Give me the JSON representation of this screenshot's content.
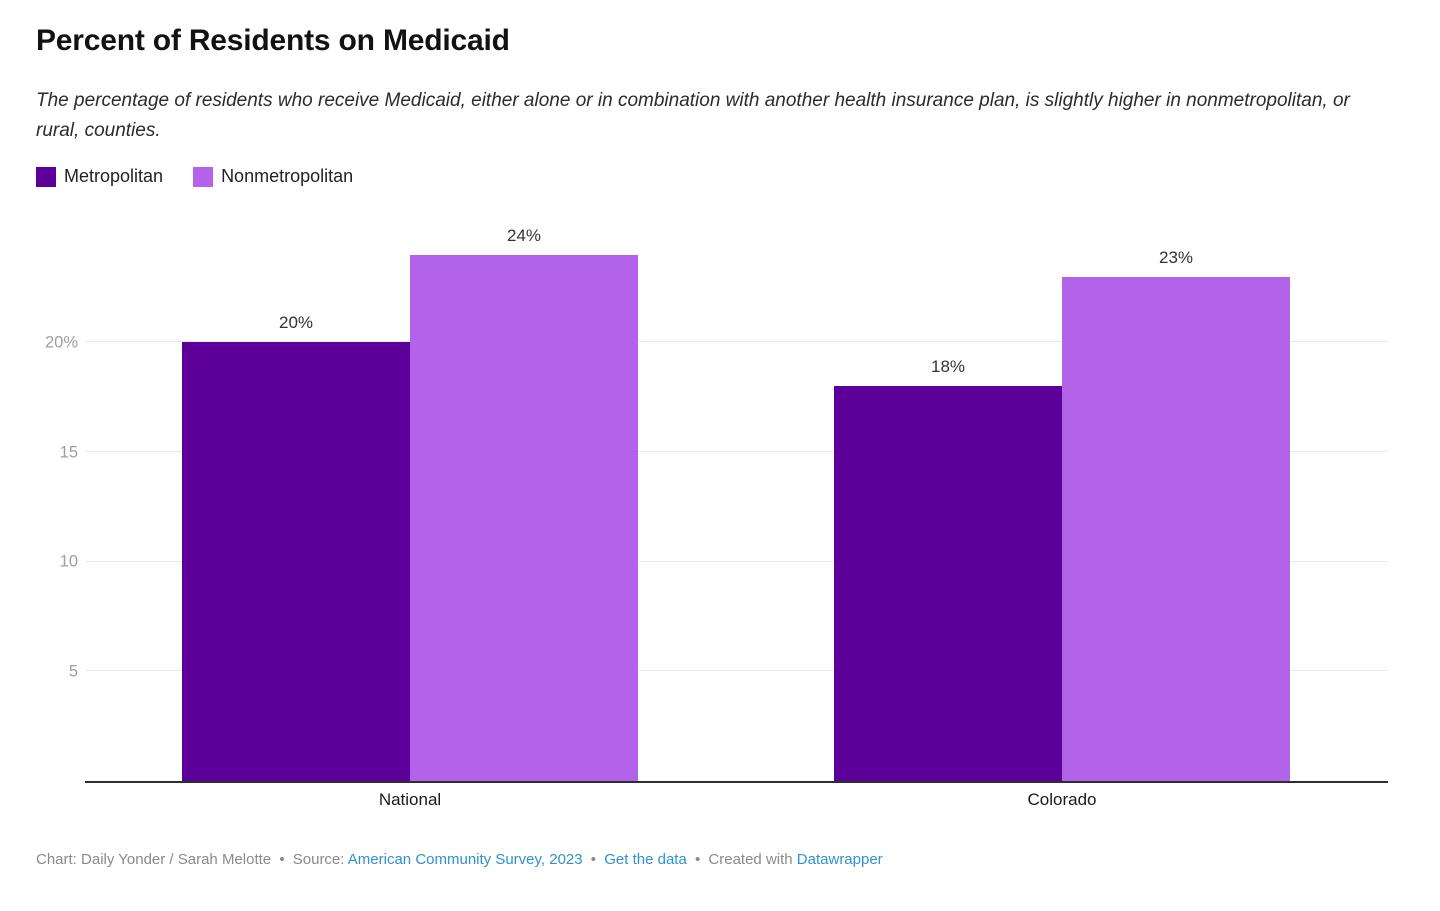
{
  "chart_data": {
    "type": "bar",
    "title": "Percent of Residents on Medicaid",
    "subtitle": "The percentage of residents who receive Medicaid, either alone or in combination with another health insurance plan, is slightly higher in nonmetropolitan, or rural, counties.",
    "categories": [
      "National",
      "Colorado"
    ],
    "series": [
      {
        "name": "Metropolitan",
        "color": "#5c0099",
        "values": [
          20,
          18
        ],
        "labels": [
          "20%",
          "18%"
        ]
      },
      {
        "name": "Nonmetropolitan",
        "color": "#b363e9",
        "values": [
          24,
          23
        ],
        "labels": [
          "24%",
          "23%"
        ]
      }
    ],
    "yticks": [
      {
        "value": 5,
        "label": "5"
      },
      {
        "value": 10,
        "label": "10"
      },
      {
        "value": 15,
        "label": "15"
      },
      {
        "value": 20,
        "label": "20%"
      }
    ],
    "ylim": [
      0,
      25
    ],
    "unit": "percent",
    "grid": "horizontal gridlines only",
    "legend_position": "top-left"
  },
  "footer": {
    "attribution": "Chart: Daily Yonder / Sarah Melotte",
    "separator": "•",
    "source_label": "Source:",
    "source_link": "American Community Survey, 2023",
    "get_data_link": "Get the data",
    "created_with": "Created with",
    "datawrapper_link": "Datawrapper"
  },
  "colors": {
    "metropolitan_bar": "#5c0099",
    "nonmetropolitan_bar": "#b363e9",
    "link_blue": "#2e91d2",
    "footer_gray": "#8a8a8a",
    "tick_gray": "#9e9e9e",
    "gridline_gray": "#e9e9e9",
    "axis_line": "#2e2e2e"
  }
}
